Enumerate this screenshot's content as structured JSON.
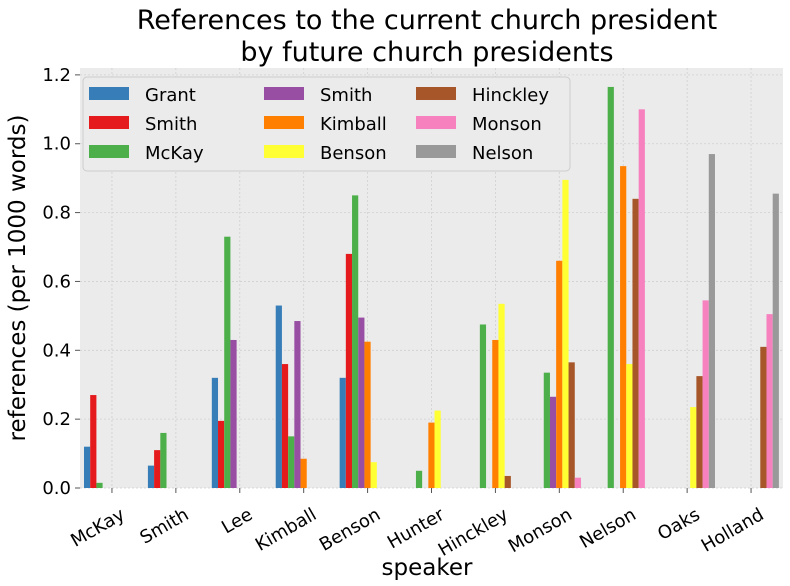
{
  "chart_data": {
    "type": "bar",
    "title": [
      "References to the current church president",
      "by future church presidents"
    ],
    "xlabel": "speaker",
    "ylabel": "references (per 1000 words)",
    "categories": [
      "McKay",
      "Smith",
      "Lee",
      "Kimball",
      "Benson",
      "Hunter",
      "Hinckley",
      "Monson",
      "Nelson",
      "Oaks",
      "Holland"
    ],
    "ylim": [
      0,
      1.22
    ],
    "yticks": [
      "0.0",
      "0.2",
      "0.4",
      "0.6",
      "0.8",
      "1.0",
      "1.2"
    ],
    "ytick_values": [
      0,
      0.2,
      0.4,
      0.6,
      0.8,
      1.0,
      1.2
    ],
    "grid": true,
    "legend_position": "top-left",
    "series": [
      {
        "name": "Grant",
        "color": "#377eb8",
        "values": [
          0.12,
          0.065,
          0.32,
          0.53,
          0.32,
          0,
          0,
          0,
          0,
          0,
          0
        ]
      },
      {
        "name": "Smith",
        "color": "#e41a1c",
        "values": [
          0.27,
          0.11,
          0.195,
          0.36,
          0.68,
          0,
          0,
          0,
          0,
          0,
          0
        ]
      },
      {
        "name": "McKay",
        "color": "#4daf4a",
        "values": [
          0.015,
          0.16,
          0.73,
          0.15,
          0.85,
          0.05,
          0.475,
          0.335,
          1.165,
          0,
          0
        ]
      },
      {
        "name": "Smith",
        "color": "#984ea3",
        "values": [
          0,
          0,
          0.43,
          0.485,
          0.495,
          0,
          0,
          0.265,
          0,
          0,
          0
        ]
      },
      {
        "name": "Kimball",
        "color": "#ff7f00",
        "values": [
          0,
          0,
          0,
          0.085,
          0.425,
          0.19,
          0.43,
          0.66,
          0.935,
          0,
          0
        ]
      },
      {
        "name": "Benson",
        "color": "#ffff33",
        "values": [
          0,
          0,
          0,
          0,
          0.075,
          0.225,
          0.535,
          0.895,
          0.36,
          0.235,
          0
        ]
      },
      {
        "name": "Hinckley",
        "color": "#a65628",
        "values": [
          0,
          0,
          0,
          0,
          0,
          0,
          0.035,
          0.365,
          0.84,
          0.325,
          0.41
        ]
      },
      {
        "name": "Monson",
        "color": "#f781bf",
        "values": [
          0,
          0,
          0,
          0,
          0,
          0,
          0,
          0.03,
          1.1,
          0.545,
          0.505
        ]
      },
      {
        "name": "Nelson",
        "color": "#999999",
        "values": [
          0,
          0,
          0,
          0,
          0,
          0,
          0,
          0,
          0,
          0.97,
          0.855
        ]
      }
    ]
  }
}
